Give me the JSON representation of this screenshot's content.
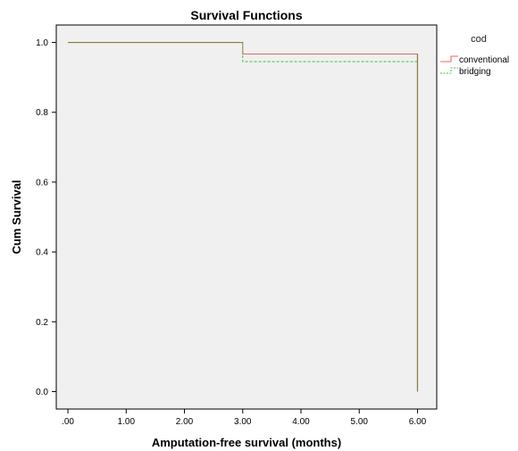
{
  "chart_data": {
    "type": "line",
    "step": true,
    "title": "Survival Functions",
    "xlabel": "Amputation-free survival (months)",
    "ylabel": "Cum Survival",
    "xlim": [
      -0.2,
      6.33
    ],
    "ylim": [
      -0.05,
      1.05
    ],
    "xticks": [
      0,
      1,
      2,
      3,
      4,
      5,
      6
    ],
    "xtick_labels": [
      ".00",
      "1.00",
      "2.00",
      "3.00",
      "4.00",
      "5.00",
      "6.00"
    ],
    "yticks": [
      0,
      0.2,
      0.4,
      0.6,
      0.8,
      1.0
    ],
    "ytick_labels": [
      "0.0",
      "0.2",
      "0.4",
      "0.6",
      "0.8",
      "1.0"
    ],
    "legend_title": "cod",
    "legend_position": "right",
    "series": [
      {
        "name": "conventional",
        "color": "#f06060",
        "style": "solid",
        "x": [
          0,
          3,
          3,
          6,
          6
        ],
        "y": [
          1.0,
          1.0,
          0.967,
          0.967,
          0.0
        ]
      },
      {
        "name": "bridging",
        "color": "#40c040",
        "style": "dashed",
        "x": [
          0,
          3,
          3,
          6,
          6
        ],
        "y": [
          1.0,
          1.0,
          0.945,
          0.945,
          0.0
        ]
      }
    ],
    "overlap_color": "#8a7a3a",
    "plot_background": "#f0f0f0",
    "grid": false
  }
}
